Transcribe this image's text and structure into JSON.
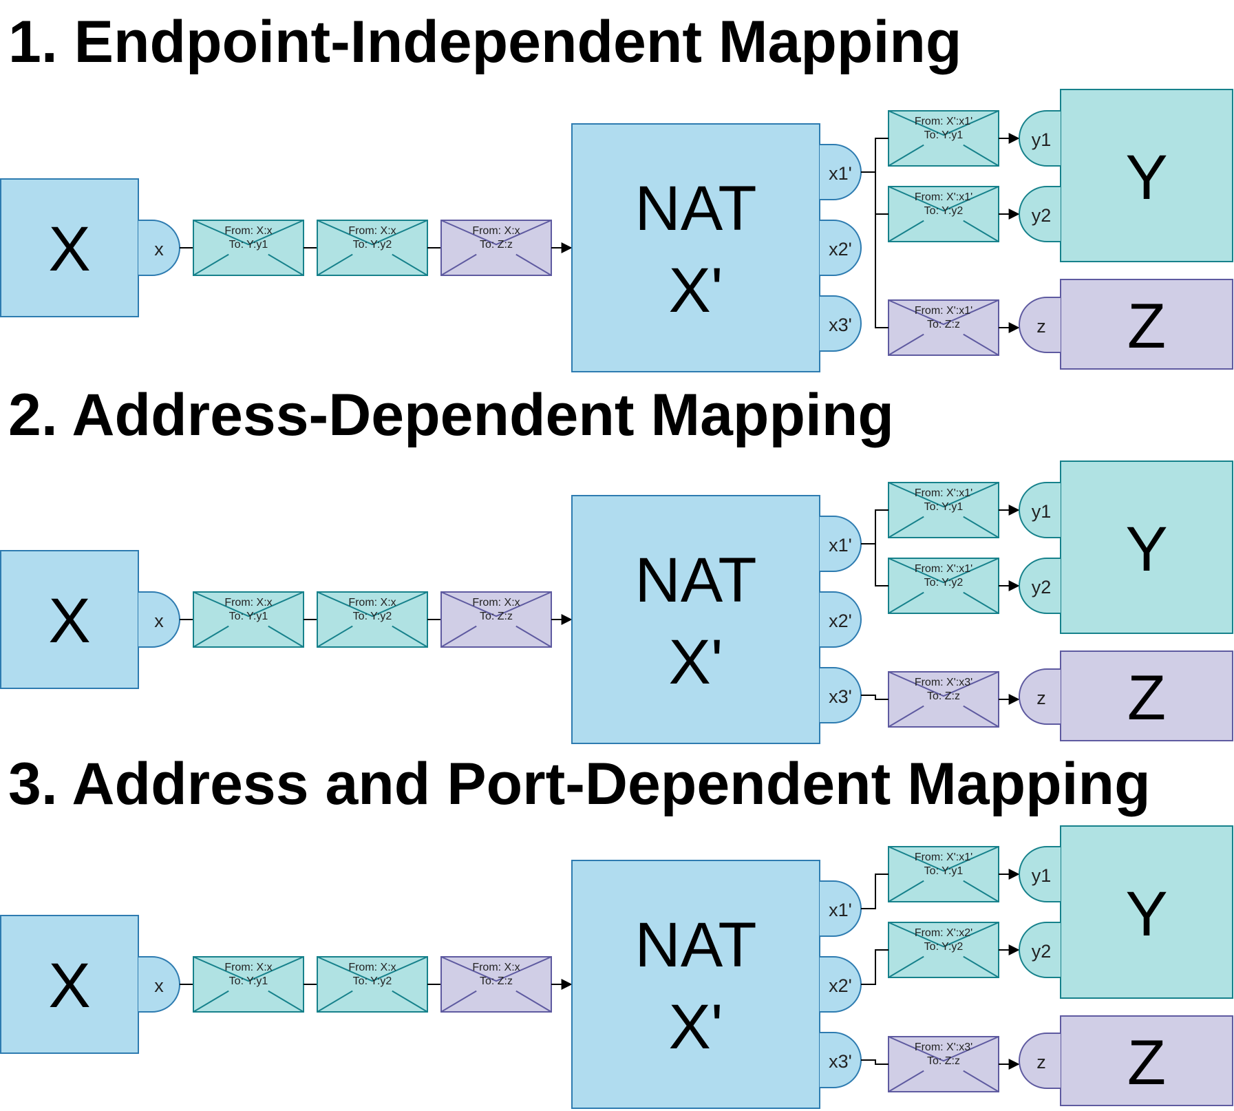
{
  "colors": {
    "blue_fill": "#b0dcef",
    "blue_stroke": "#2d7bb0",
    "teal_fill": "#b0e2e3",
    "teal_stroke": "#16818b",
    "purple_fill": "#d0cee6",
    "purple_stroke": "#5e5aa0",
    "line": "#000000"
  },
  "sections": [
    {
      "title": "1. Endpoint-Independent Mapping",
      "host_label": "X",
      "host_port": "x",
      "nat_label_line1": "NAT",
      "nat_label_line2": "X'",
      "nat_ports": [
        "x1'",
        "x2'",
        "x3'"
      ],
      "inbound_envelopes": [
        {
          "from": "From: X:x",
          "to": "To: Y:y1",
          "color": "teal"
        },
        {
          "from": "From: X:x",
          "to": "To: Y:y2",
          "color": "teal"
        },
        {
          "from": "From: X:x",
          "to": "To: Z:z",
          "color": "purple"
        }
      ],
      "outbound_envelopes": [
        {
          "from": "From: X':x1'",
          "to": "To: Y:y1",
          "color": "teal",
          "source_port": 0
        },
        {
          "from": "From: X':x1'",
          "to": "To: Y:y2",
          "color": "teal",
          "source_port": 0
        },
        {
          "from": "From: X':x1'",
          "to": "To: Z:z",
          "color": "purple",
          "source_port": 0
        }
      ],
      "dest_ports": [
        "y1",
        "y2",
        "z"
      ],
      "dest_y_label": "Y",
      "dest_z_label": "Z"
    },
    {
      "title": "2. Address-Dependent Mapping",
      "host_label": "X",
      "host_port": "x",
      "nat_label_line1": "NAT",
      "nat_label_line2": "X'",
      "nat_ports": [
        "x1'",
        "x2'",
        "x3'"
      ],
      "inbound_envelopes": [
        {
          "from": "From: X:x",
          "to": "To: Y:y1",
          "color": "teal"
        },
        {
          "from": "From: X:x",
          "to": "To: Y:y2",
          "color": "teal"
        },
        {
          "from": "From: X:x",
          "to": "To: Z:z",
          "color": "purple"
        }
      ],
      "outbound_envelopes": [
        {
          "from": "From: X':x1'",
          "to": "To: Y:y1",
          "color": "teal",
          "source_port": 0
        },
        {
          "from": "From: X':x1'",
          "to": "To: Y:y2",
          "color": "teal",
          "source_port": 0
        },
        {
          "from": "From: X':x3'",
          "to": "To: Z:z",
          "color": "purple",
          "source_port": 2
        }
      ],
      "dest_ports": [
        "y1",
        "y2",
        "z"
      ],
      "dest_y_label": "Y",
      "dest_z_label": "Z"
    },
    {
      "title": "3. Address and Port-Dependent Mapping",
      "host_label": "X",
      "host_port": "x",
      "nat_label_line1": "NAT",
      "nat_label_line2": "X'",
      "nat_ports": [
        "x1'",
        "x2'",
        "x3'"
      ],
      "inbound_envelopes": [
        {
          "from": "From: X:x",
          "to": "To: Y:y1",
          "color": "teal"
        },
        {
          "from": "From: X:x",
          "to": "To: Y:y2",
          "color": "teal"
        },
        {
          "from": "From: X:x",
          "to": "To: Z:z",
          "color": "purple"
        }
      ],
      "outbound_envelopes": [
        {
          "from": "From: X':x1'",
          "to": "To: Y:y1",
          "color": "teal",
          "source_port": 0
        },
        {
          "from": "From: X':x2'",
          "to": "To: Y:y2",
          "color": "teal",
          "source_port": 1
        },
        {
          "from": "From: X':x3'",
          "to": "To: Z:z",
          "color": "purple",
          "source_port": 2
        }
      ],
      "dest_ports": [
        "y1",
        "y2",
        "z"
      ],
      "dest_y_label": "Y",
      "dest_z_label": "Z"
    }
  ]
}
